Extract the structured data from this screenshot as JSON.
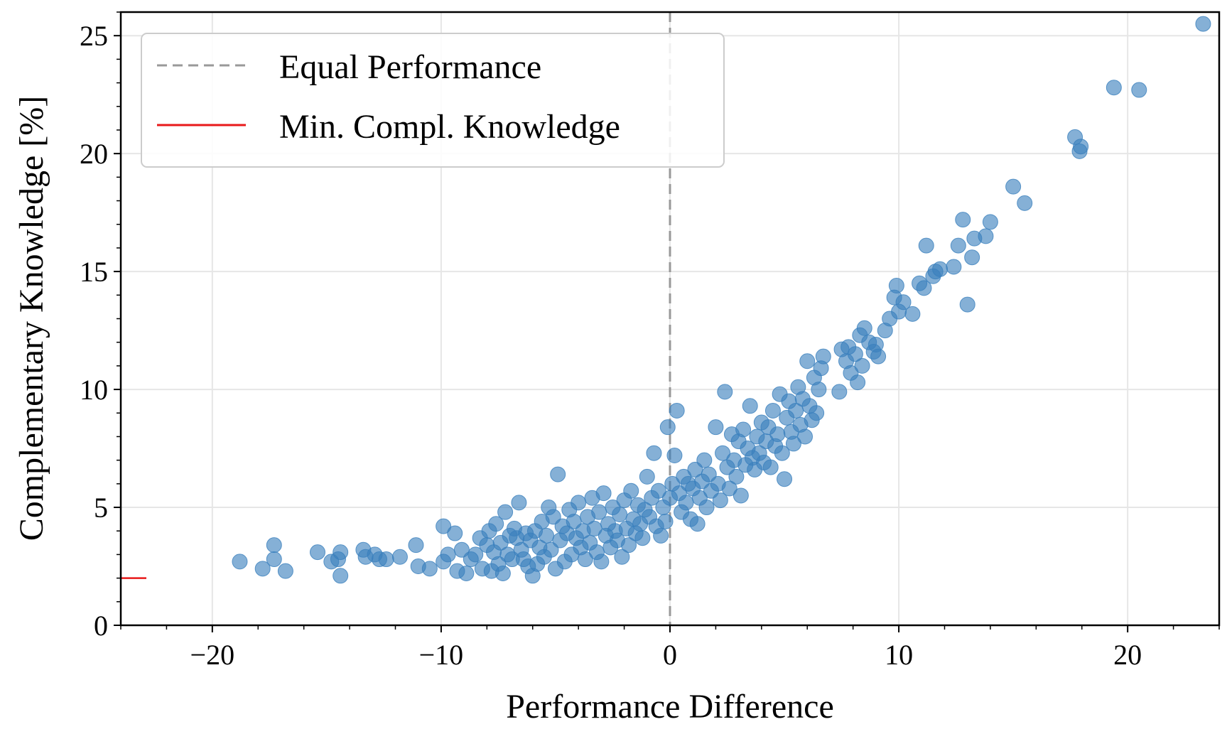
{
  "chart_data": {
    "type": "scatter",
    "xlabel": "Performance Difference",
    "ylabel": "Complementary Knowledge [%]",
    "xlim": [
      -24,
      24
    ],
    "ylim": [
      0,
      26
    ],
    "xticks": [
      -20,
      -10,
      0,
      10,
      20
    ],
    "xtick_labels": [
      "−20",
      "−10",
      "0",
      "10",
      "20"
    ],
    "yticks": [
      0,
      5,
      10,
      15,
      20,
      25
    ],
    "ytick_labels": [
      "0",
      "5",
      "10",
      "15",
      "20",
      "25"
    ],
    "grid": true,
    "legend_position": "top-left",
    "legend": [
      {
        "label": "Equal Performance",
        "style": "dashed",
        "color": "#999999"
      },
      {
        "label": "Min. Compl. Knowledge",
        "style": "solid",
        "color": "#e8191a"
      }
    ],
    "point_color": "#3a7fbd",
    "reference_lines": {
      "equal_performance_x": 0,
      "min_compl_knowledge_y": 2.0
    },
    "points": [
      [
        -18.8,
        2.7
      ],
      [
        -17.8,
        2.4
      ],
      [
        -17.3,
        3.4
      ],
      [
        -17.3,
        2.8
      ],
      [
        -16.8,
        2.3
      ],
      [
        -15.4,
        3.1
      ],
      [
        -14.8,
        2.7
      ],
      [
        -14.5,
        2.8
      ],
      [
        -14.4,
        3.1
      ],
      [
        -14.4,
        2.1
      ],
      [
        -13.4,
        3.2
      ],
      [
        -13.3,
        2.9
      ],
      [
        -12.9,
        3.0
      ],
      [
        -12.7,
        2.8
      ],
      [
        -12.4,
        2.8
      ],
      [
        -11.8,
        2.9
      ],
      [
        -11.1,
        3.4
      ],
      [
        -11.0,
        2.5
      ],
      [
        -10.5,
        2.4
      ],
      [
        -9.9,
        4.2
      ],
      [
        -9.9,
        2.7
      ],
      [
        -9.7,
        3.0
      ],
      [
        -9.4,
        3.9
      ],
      [
        -9.3,
        2.3
      ],
      [
        -9.1,
        3.2
      ],
      [
        -8.9,
        2.2
      ],
      [
        -8.7,
        2.8
      ],
      [
        -8.5,
        3.0
      ],
      [
        -8.3,
        3.7
      ],
      [
        -8.2,
        2.4
      ],
      [
        -8.0,
        3.4
      ],
      [
        -7.9,
        4.0
      ],
      [
        -7.8,
        2.3
      ],
      [
        -7.7,
        3.1
      ],
      [
        -7.6,
        4.3
      ],
      [
        -7.5,
        2.6
      ],
      [
        -7.4,
        3.5
      ],
      [
        -7.3,
        2.2
      ],
      [
        -7.2,
        4.8
      ],
      [
        -7.1,
        3.0
      ],
      [
        -7.0,
        3.8
      ],
      [
        -6.9,
        2.8
      ],
      [
        -6.8,
        4.1
      ],
      [
        -6.7,
        3.7
      ],
      [
        -6.6,
        5.2
      ],
      [
        -6.5,
        3.2
      ],
      [
        -6.4,
        2.8
      ],
      [
        -6.3,
        3.9
      ],
      [
        -6.2,
        2.5
      ],
      [
        -6.1,
        3.6
      ],
      [
        -6.0,
        2.1
      ],
      [
        -5.9,
        4.0
      ],
      [
        -5.8,
        2.6
      ],
      [
        -5.7,
        3.3
      ],
      [
        -5.6,
        4.4
      ],
      [
        -5.5,
        2.9
      ],
      [
        -5.4,
        3.8
      ],
      [
        -5.3,
        5.0
      ],
      [
        -5.2,
        3.2
      ],
      [
        -5.1,
        4.6
      ],
      [
        -5.0,
        2.4
      ],
      [
        -4.9,
        6.4
      ],
      [
        -4.8,
        3.6
      ],
      [
        -4.7,
        4.2
      ],
      [
        -4.6,
        2.7
      ],
      [
        -4.5,
        3.9
      ],
      [
        -4.4,
        4.9
      ],
      [
        -4.3,
        3.0
      ],
      [
        -4.2,
        4.4
      ],
      [
        -4.1,
        3.7
      ],
      [
        -4.0,
        5.2
      ],
      [
        -3.9,
        3.3
      ],
      [
        -3.8,
        4.0
      ],
      [
        -3.7,
        2.8
      ],
      [
        -3.6,
        4.6
      ],
      [
        -3.5,
        3.5
      ],
      [
        -3.4,
        5.4
      ],
      [
        -3.3,
        4.1
      ],
      [
        -3.2,
        3.1
      ],
      [
        -3.1,
        4.8
      ],
      [
        -3.0,
        2.7
      ],
      [
        -2.9,
        5.6
      ],
      [
        -2.8,
        3.8
      ],
      [
        -2.7,
        4.3
      ],
      [
        -2.6,
        3.3
      ],
      [
        -2.5,
        5.0
      ],
      [
        -2.4,
        4.0
      ],
      [
        -2.3,
        3.6
      ],
      [
        -2.2,
        4.7
      ],
      [
        -2.1,
        2.9
      ],
      [
        -2.0,
        5.3
      ],
      [
        -1.9,
        4.1
      ],
      [
        -1.8,
        3.4
      ],
      [
        -1.7,
        5.7
      ],
      [
        -1.6,
        4.5
      ],
      [
        -1.5,
        3.9
      ],
      [
        -1.4,
        5.1
      ],
      [
        -1.3,
        4.3
      ],
      [
        -1.2,
        3.7
      ],
      [
        -1.1,
        4.9
      ],
      [
        -1.0,
        6.3
      ],
      [
        -0.9,
        4.6
      ],
      [
        -0.8,
        5.4
      ],
      [
        -0.7,
        7.3
      ],
      [
        -0.6,
        4.2
      ],
      [
        -0.5,
        5.7
      ],
      [
        -0.4,
        3.8
      ],
      [
        -0.3,
        5.0
      ],
      [
        -0.2,
        4.4
      ],
      [
        -0.1,
        8.4
      ],
      [
        0.0,
        5.4
      ],
      [
        0.1,
        6.0
      ],
      [
        0.2,
        7.2
      ],
      [
        0.3,
        9.1
      ],
      [
        0.4,
        5.6
      ],
      [
        0.5,
        4.8
      ],
      [
        0.6,
        6.3
      ],
      [
        0.7,
        5.2
      ],
      [
        0.8,
        6.0
      ],
      [
        0.9,
        4.5
      ],
      [
        1.0,
        5.8
      ],
      [
        1.1,
        6.6
      ],
      [
        1.2,
        4.3
      ],
      [
        1.3,
        5.4
      ],
      [
        1.4,
        6.1
      ],
      [
        1.5,
        7.0
      ],
      [
        1.6,
        5.0
      ],
      [
        1.7,
        6.4
      ],
      [
        1.8,
        5.7
      ],
      [
        2.0,
        8.4
      ],
      [
        2.1,
        6.0
      ],
      [
        2.2,
        5.3
      ],
      [
        2.3,
        7.3
      ],
      [
        2.4,
        9.9
      ],
      [
        2.5,
        6.7
      ],
      [
        2.6,
        5.8
      ],
      [
        2.7,
        8.1
      ],
      [
        2.8,
        7.0
      ],
      [
        2.9,
        6.3
      ],
      [
        3.0,
        7.8
      ],
      [
        3.1,
        5.5
      ],
      [
        3.2,
        8.3
      ],
      [
        3.3,
        6.8
      ],
      [
        3.4,
        7.5
      ],
      [
        3.5,
        9.3
      ],
      [
        3.6,
        7.1
      ],
      [
        3.7,
        6.6
      ],
      [
        3.8,
        8.0
      ],
      [
        3.9,
        7.3
      ],
      [
        4.0,
        8.6
      ],
      [
        4.1,
        6.9
      ],
      [
        4.2,
        7.8
      ],
      [
        4.3,
        8.4
      ],
      [
        4.4,
        6.7
      ],
      [
        4.5,
        9.1
      ],
      [
        4.6,
        7.6
      ],
      [
        4.7,
        8.1
      ],
      [
        4.8,
        9.8
      ],
      [
        4.9,
        7.3
      ],
      [
        5.0,
        6.2
      ],
      [
        5.1,
        8.8
      ],
      [
        5.2,
        9.5
      ],
      [
        5.3,
        8.2
      ],
      [
        5.4,
        7.7
      ],
      [
        5.5,
        9.1
      ],
      [
        5.6,
        10.1
      ],
      [
        5.7,
        8.5
      ],
      [
        5.8,
        9.6
      ],
      [
        5.9,
        8.0
      ],
      [
        6.0,
        11.2
      ],
      [
        6.1,
        9.3
      ],
      [
        6.2,
        8.7
      ],
      [
        6.3,
        10.5
      ],
      [
        6.4,
        9.0
      ],
      [
        6.5,
        10.0
      ],
      [
        6.6,
        10.9
      ],
      [
        6.7,
        11.4
      ],
      [
        7.4,
        9.9
      ],
      [
        7.5,
        11.7
      ],
      [
        7.7,
        11.2
      ],
      [
        7.8,
        11.8
      ],
      [
        7.9,
        10.7
      ],
      [
        8.1,
        11.5
      ],
      [
        8.2,
        10.3
      ],
      [
        8.3,
        12.3
      ],
      [
        8.4,
        11.0
      ],
      [
        8.5,
        12.6
      ],
      [
        8.7,
        12.0
      ],
      [
        8.9,
        11.6
      ],
      [
        9.0,
        11.9
      ],
      [
        9.1,
        11.4
      ],
      [
        9.4,
        12.5
      ],
      [
        9.6,
        13.0
      ],
      [
        9.8,
        13.9
      ],
      [
        9.9,
        14.4
      ],
      [
        10.0,
        13.3
      ],
      [
        10.2,
        13.7
      ],
      [
        10.6,
        13.2
      ],
      [
        10.9,
        14.5
      ],
      [
        11.1,
        14.3
      ],
      [
        11.2,
        16.1
      ],
      [
        11.5,
        14.8
      ],
      [
        11.6,
        15.0
      ],
      [
        11.8,
        15.1
      ],
      [
        12.4,
        15.2
      ],
      [
        12.6,
        16.1
      ],
      [
        12.8,
        17.2
      ],
      [
        13.0,
        13.6
      ],
      [
        13.2,
        15.6
      ],
      [
        13.3,
        16.4
      ],
      [
        13.8,
        16.5
      ],
      [
        14.0,
        17.1
      ],
      [
        15.0,
        18.6
      ],
      [
        15.5,
        17.9
      ],
      [
        17.7,
        20.7
      ],
      [
        17.9,
        20.1
      ],
      [
        17.95,
        20.3
      ],
      [
        19.4,
        22.8
      ],
      [
        20.5,
        22.7
      ],
      [
        23.3,
        25.5
      ]
    ]
  }
}
